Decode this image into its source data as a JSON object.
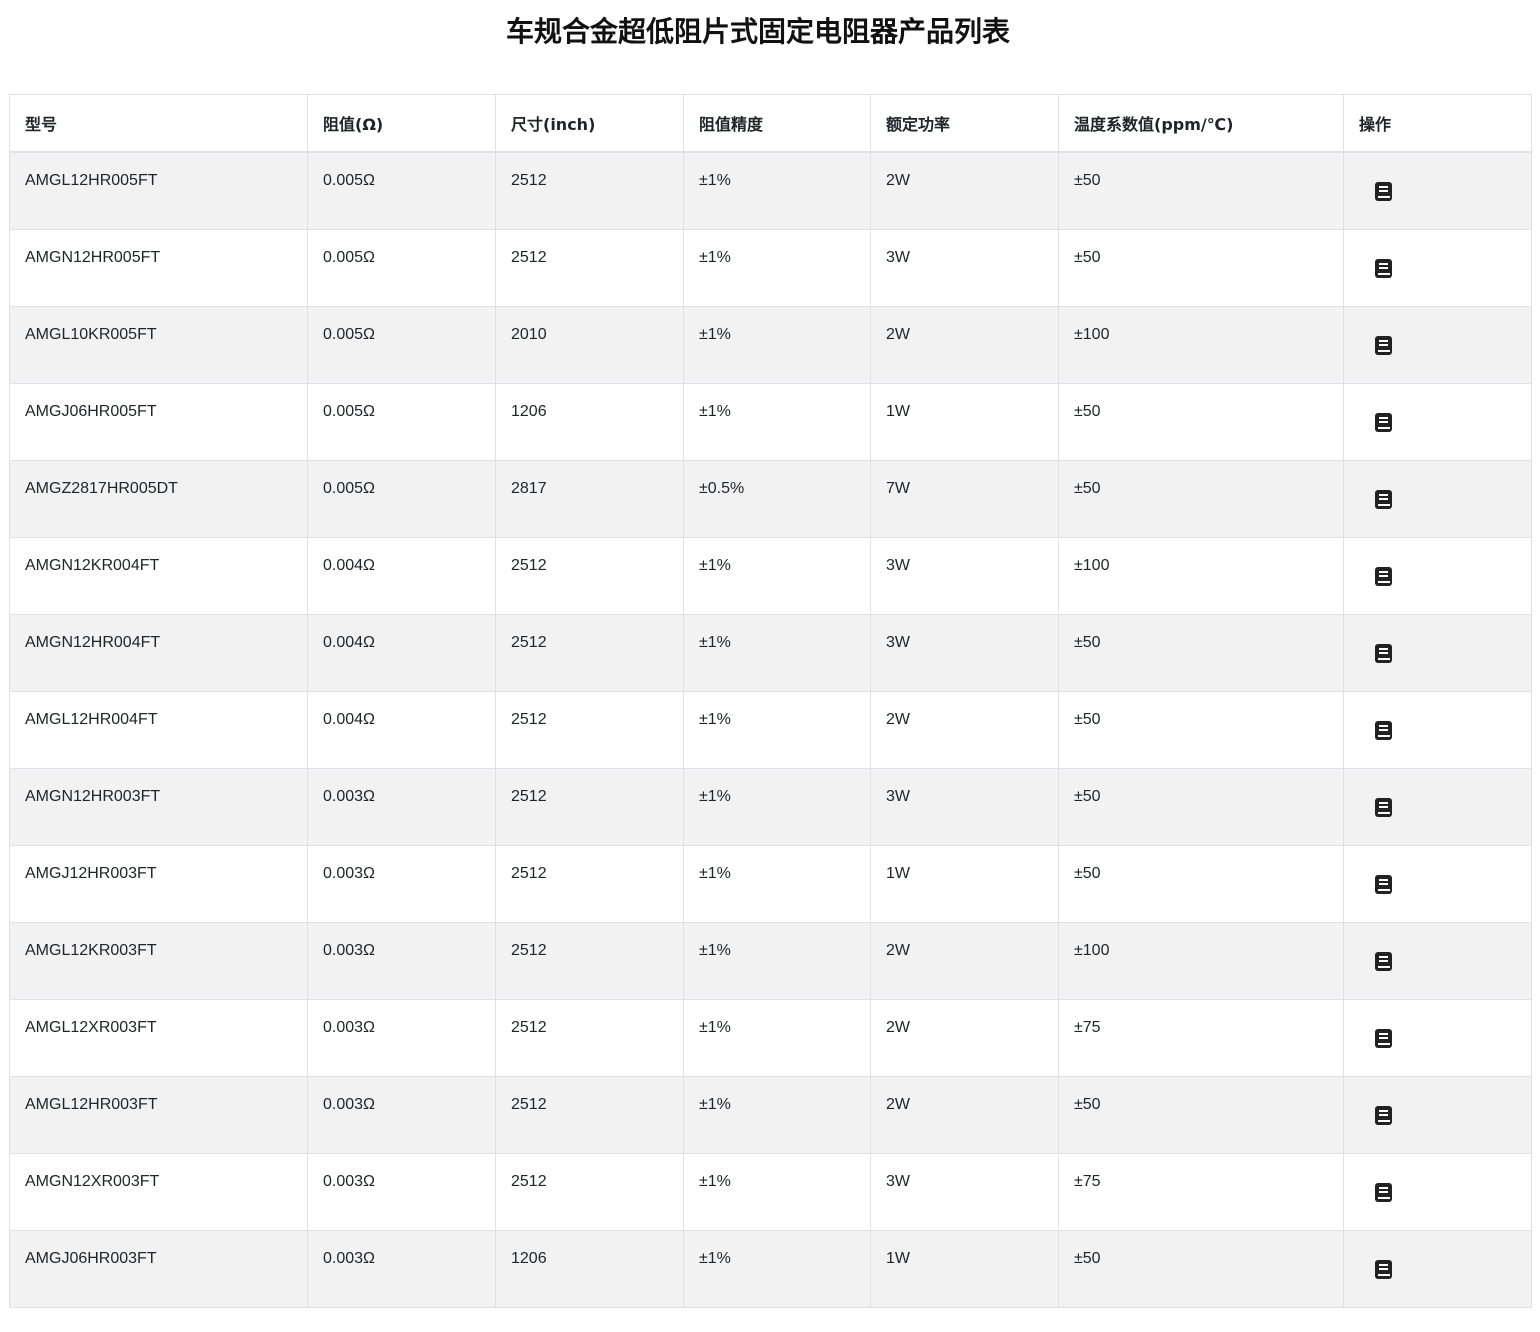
{
  "title": "车规合金超低阻片式固定电阻器产品列表",
  "columns": [
    "型号",
    "阻值(Ω)",
    "尺寸(inch)",
    "阻值精度",
    "额定功率",
    "温度系数值(ppm/℃)",
    "操作"
  ],
  "action_icon": "book-icon",
  "rows": [
    [
      "AMGL12HR005FT",
      "0.005Ω",
      "2512",
      "±1%",
      "2W",
      "±50"
    ],
    [
      "AMGN12HR005FT",
      "0.005Ω",
      "2512",
      "±1%",
      "3W",
      "±50"
    ],
    [
      "AMGL10KR005FT",
      "0.005Ω",
      "2010",
      "±1%",
      "2W",
      "±100"
    ],
    [
      "AMGJ06HR005FT",
      "0.005Ω",
      "1206",
      "±1%",
      "1W",
      "±50"
    ],
    [
      "AMGZ2817HR005DT",
      "0.005Ω",
      "2817",
      "±0.5%",
      "7W",
      "±50"
    ],
    [
      "AMGN12KR004FT",
      "0.004Ω",
      "2512",
      "±1%",
      "3W",
      "±100"
    ],
    [
      "AMGN12HR004FT",
      "0.004Ω",
      "2512",
      "±1%",
      "3W",
      "±50"
    ],
    [
      "AMGL12HR004FT",
      "0.004Ω",
      "2512",
      "±1%",
      "2W",
      "±50"
    ],
    [
      "AMGN12HR003FT",
      "0.003Ω",
      "2512",
      "±1%",
      "3W",
      "±50"
    ],
    [
      "AMGJ12HR003FT",
      "0.003Ω",
      "2512",
      "±1%",
      "1W",
      "±50"
    ],
    [
      "AMGL12KR003FT",
      "0.003Ω",
      "2512",
      "±1%",
      "2W",
      "±100"
    ],
    [
      "AMGL12XR003FT",
      "0.003Ω",
      "2512",
      "±1%",
      "2W",
      "±75"
    ],
    [
      "AMGL12HR003FT",
      "0.003Ω",
      "2512",
      "±1%",
      "2W",
      "±50"
    ],
    [
      "AMGN12XR003FT",
      "0.003Ω",
      "2512",
      "±1%",
      "3W",
      "±75"
    ],
    [
      "AMGJ06HR003FT",
      "0.003Ω",
      "1206",
      "±1%",
      "1W",
      "±50"
    ]
  ]
}
